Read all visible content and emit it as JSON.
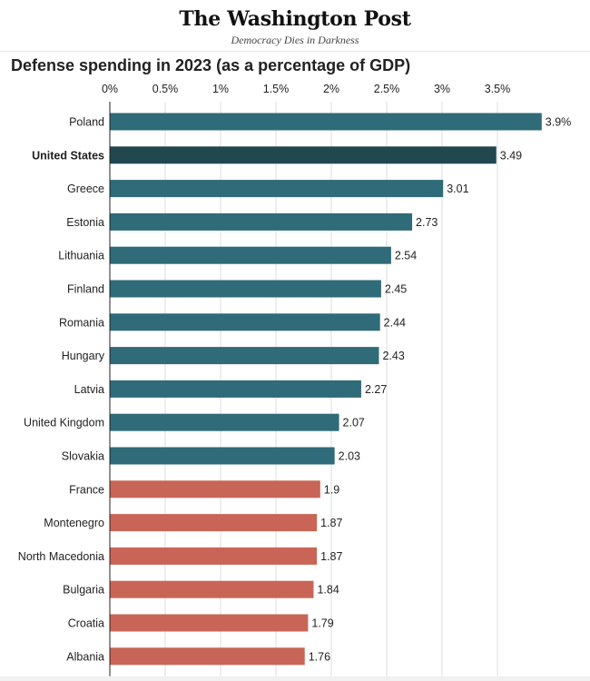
{
  "masthead": {
    "brand": "The Washington Post",
    "tagline": "Democracy Dies in Darkness"
  },
  "colors": {
    "teal": "#2f6b78",
    "highlight": "#21474f",
    "coral": "#c96556",
    "gridline": "#dddddd",
    "axis": "#222222"
  },
  "chart_data": {
    "type": "bar",
    "orientation": "horizontal",
    "title": "Defense spending in 2023 (as a percentage of GDP)",
    "xlim": [
      0,
      3.9
    ],
    "grid": true,
    "x_ticks": [
      0,
      0.5,
      1,
      1.5,
      2,
      2.5,
      3,
      3.5
    ],
    "x_tick_labels": [
      "0%",
      "0.5%",
      "1%",
      "1.5%",
      "2%",
      "2.5%",
      "3%",
      "3.5%"
    ],
    "categories": [
      "Poland",
      "United States",
      "Greece",
      "Estonia",
      "Lithuania",
      "Finland",
      "Romania",
      "Hungary",
      "Latvia",
      "United Kingdom",
      "Slovakia",
      "France",
      "Montenegro",
      "North Macedonia",
      "Bulgaria",
      "Croatia",
      "Albania"
    ],
    "values": [
      3.9,
      3.49,
      3.01,
      2.73,
      2.54,
      2.45,
      2.44,
      2.43,
      2.27,
      2.07,
      2.03,
      1.9,
      1.87,
      1.87,
      1.84,
      1.79,
      1.76
    ],
    "value_labels": [
      "3.9%",
      "3.49",
      "3.01",
      "2.73",
      "2.54",
      "2.45",
      "2.44",
      "2.43",
      "2.27",
      "2.07",
      "2.03",
      "1.9",
      "1.87",
      "1.87",
      "1.84",
      "1.79",
      "1.76"
    ],
    "highlight_category": "United States",
    "bar_color_groups": [
      "teal",
      "highlight",
      "teal",
      "teal",
      "teal",
      "teal",
      "teal",
      "teal",
      "teal",
      "teal",
      "teal",
      "coral",
      "coral",
      "coral",
      "coral",
      "coral",
      "coral"
    ]
  }
}
